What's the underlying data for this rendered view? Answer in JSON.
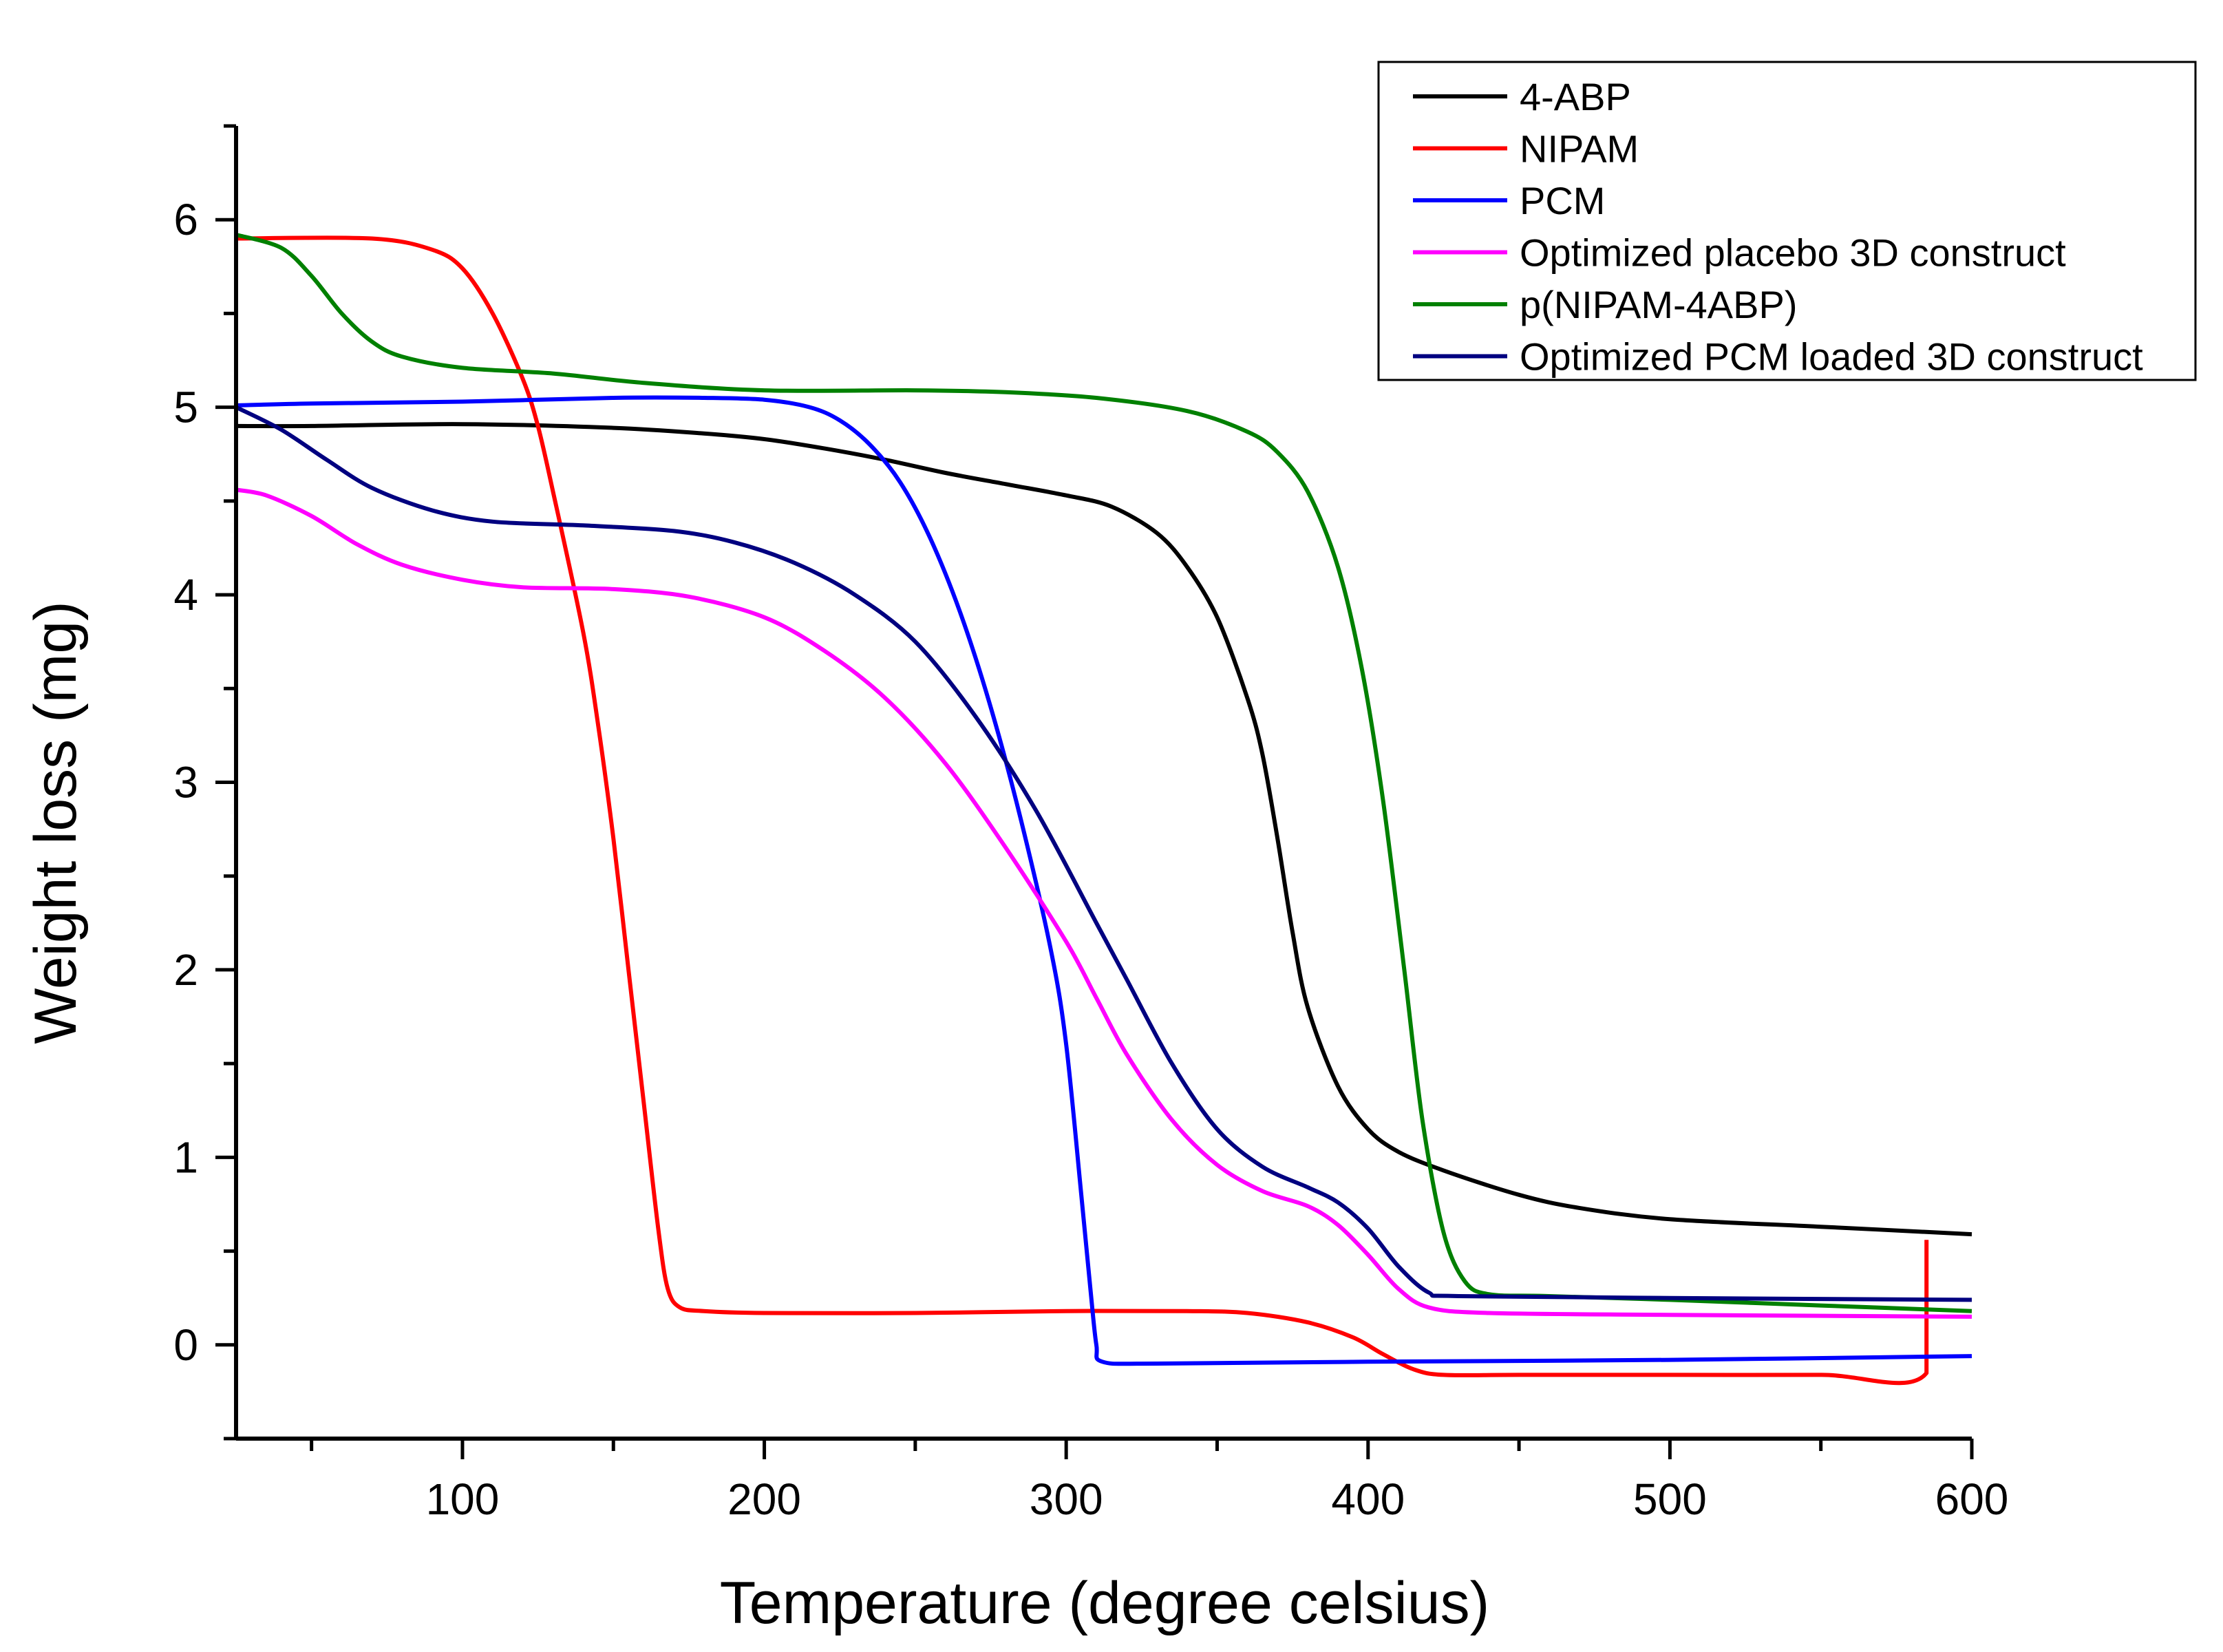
{
  "chart_data": {
    "type": "line",
    "title": "",
    "xlabel": "Temperature (degree celsius)",
    "ylabel": "Weight loss (mg)",
    "xlim": [
      25,
      600
    ],
    "ylim": [
      -0.5,
      6.5
    ],
    "xticks": [
      100,
      200,
      300,
      400,
      500,
      600
    ],
    "xtick_labels": [
      "100",
      "200",
      "300",
      "400",
      "500",
      "600"
    ],
    "yticks": [
      0,
      1,
      2,
      3,
      4,
      5,
      6
    ],
    "ytick_labels": [
      "0",
      "1",
      "2",
      "3",
      "4",
      "5",
      "6"
    ],
    "legend_position": "top-right",
    "series": [
      {
        "name": "4-ABP",
        "color": "#000000",
        "points": [
          [
            25,
            4.9
          ],
          [
            50,
            4.9
          ],
          [
            100,
            4.91
          ],
          [
            150,
            4.89
          ],
          [
            180,
            4.86
          ],
          [
            200,
            4.83
          ],
          [
            220,
            4.78
          ],
          [
            240,
            4.72
          ],
          [
            260,
            4.65
          ],
          [
            280,
            4.59
          ],
          [
            300,
            4.53
          ],
          [
            315,
            4.47
          ],
          [
            330,
            4.33
          ],
          [
            340,
            4.15
          ],
          [
            350,
            3.88
          ],
          [
            360,
            3.45
          ],
          [
            365,
            3.15
          ],
          [
            370,
            2.7
          ],
          [
            375,
            2.2
          ],
          [
            380,
            1.8
          ],
          [
            390,
            1.38
          ],
          [
            400,
            1.15
          ],
          [
            410,
            1.03
          ],
          [
            425,
            0.93
          ],
          [
            450,
            0.8
          ],
          [
            470,
            0.73
          ],
          [
            500,
            0.67
          ],
          [
            550,
            0.63
          ],
          [
            600,
            0.59
          ]
        ]
      },
      {
        "name": "NIPAM",
        "color": "#ff0000",
        "points": [
          [
            25,
            5.9
          ],
          [
            70,
            5.9
          ],
          [
            90,
            5.84
          ],
          [
            100,
            5.74
          ],
          [
            110,
            5.5
          ],
          [
            120,
            5.15
          ],
          [
            125,
            4.9
          ],
          [
            130,
            4.55
          ],
          [
            140,
            3.8
          ],
          [
            145,
            3.3
          ],
          [
            150,
            2.7
          ],
          [
            155,
            2.0
          ],
          [
            160,
            1.3
          ],
          [
            165,
            0.6
          ],
          [
            168,
            0.3
          ],
          [
            172,
            0.2
          ],
          [
            180,
            0.18
          ],
          [
            200,
            0.17
          ],
          [
            250,
            0.17
          ],
          [
            300,
            0.18
          ],
          [
            340,
            0.18
          ],
          [
            360,
            0.17
          ],
          [
            380,
            0.12
          ],
          [
            395,
            0.04
          ],
          [
            405,
            -0.05
          ],
          [
            415,
            -0.13
          ],
          [
            425,
            -0.16
          ],
          [
            450,
            -0.16
          ],
          [
            500,
            -0.16
          ],
          [
            550,
            -0.16
          ],
          [
            585,
            -0.15
          ],
          [
            585,
            0.56
          ]
        ]
      },
      {
        "name": "PCM",
        "color": "#0000ff",
        "points": [
          [
            25,
            5.01
          ],
          [
            50,
            5.02
          ],
          [
            100,
            5.03
          ],
          [
            150,
            5.05
          ],
          [
            180,
            5.05
          ],
          [
            200,
            5.04
          ],
          [
            215,
            5.0
          ],
          [
            225,
            4.93
          ],
          [
            235,
            4.8
          ],
          [
            245,
            4.6
          ],
          [
            255,
            4.3
          ],
          [
            265,
            3.9
          ],
          [
            275,
            3.4
          ],
          [
            285,
            2.8
          ],
          [
            295,
            2.1
          ],
          [
            300,
            1.6
          ],
          [
            305,
            0.8
          ],
          [
            308,
            0.3
          ],
          [
            310,
            0.0
          ],
          [
            312,
            -0.09
          ],
          [
            330,
            -0.1
          ],
          [
            400,
            -0.09
          ],
          [
            500,
            -0.08
          ],
          [
            600,
            -0.06
          ]
        ]
      },
      {
        "name": "Optimized placebo 3D construct",
        "color": "#ff00ff",
        "points": [
          [
            25,
            4.56
          ],
          [
            35,
            4.53
          ],
          [
            50,
            4.42
          ],
          [
            65,
            4.27
          ],
          [
            80,
            4.16
          ],
          [
            100,
            4.08
          ],
          [
            120,
            4.04
          ],
          [
            150,
            4.03
          ],
          [
            175,
            3.99
          ],
          [
            200,
            3.88
          ],
          [
            220,
            3.7
          ],
          [
            240,
            3.45
          ],
          [
            260,
            3.1
          ],
          [
            280,
            2.65
          ],
          [
            300,
            2.15
          ],
          [
            310,
            1.85
          ],
          [
            320,
            1.55
          ],
          [
            335,
            1.2
          ],
          [
            350,
            0.96
          ],
          [
            365,
            0.82
          ],
          [
            380,
            0.74
          ],
          [
            390,
            0.64
          ],
          [
            400,
            0.48
          ],
          [
            410,
            0.3
          ],
          [
            420,
            0.2
          ],
          [
            440,
            0.17
          ],
          [
            500,
            0.16
          ],
          [
            600,
            0.15
          ]
        ]
      },
      {
        "name": "p(NIPAM-4ABP)",
        "color": "#008000",
        "points": [
          [
            25,
            5.92
          ],
          [
            40,
            5.85
          ],
          [
            50,
            5.7
          ],
          [
            60,
            5.5
          ],
          [
            70,
            5.35
          ],
          [
            80,
            5.27
          ],
          [
            100,
            5.21
          ],
          [
            130,
            5.18
          ],
          [
            160,
            5.13
          ],
          [
            200,
            5.09
          ],
          [
            250,
            5.09
          ],
          [
            280,
            5.08
          ],
          [
            310,
            5.05
          ],
          [
            340,
            4.98
          ],
          [
            360,
            4.87
          ],
          [
            370,
            4.76
          ],
          [
            380,
            4.55
          ],
          [
            390,
            4.15
          ],
          [
            398,
            3.6
          ],
          [
            405,
            2.9
          ],
          [
            412,
            2.0
          ],
          [
            418,
            1.2
          ],
          [
            425,
            0.6
          ],
          [
            432,
            0.34
          ],
          [
            440,
            0.27
          ],
          [
            460,
            0.26
          ],
          [
            500,
            0.24
          ],
          [
            550,
            0.21
          ],
          [
            600,
            0.18
          ]
        ]
      },
      {
        "name": "Optimized PCM loaded 3D construct",
        "color": "#000080",
        "points": [
          [
            25,
            5.0
          ],
          [
            40,
            4.88
          ],
          [
            55,
            4.72
          ],
          [
            70,
            4.57
          ],
          [
            90,
            4.45
          ],
          [
            110,
            4.39
          ],
          [
            140,
            4.37
          ],
          [
            170,
            4.34
          ],
          [
            190,
            4.28
          ],
          [
            210,
            4.17
          ],
          [
            230,
            4.0
          ],
          [
            250,
            3.75
          ],
          [
            270,
            3.35
          ],
          [
            290,
            2.85
          ],
          [
            310,
            2.25
          ],
          [
            320,
            1.95
          ],
          [
            335,
            1.5
          ],
          [
            350,
            1.15
          ],
          [
            365,
            0.95
          ],
          [
            380,
            0.84
          ],
          [
            390,
            0.76
          ],
          [
            400,
            0.62
          ],
          [
            410,
            0.42
          ],
          [
            420,
            0.28
          ],
          [
            430,
            0.26
          ],
          [
            500,
            0.25
          ],
          [
            600,
            0.24
          ]
        ]
      }
    ]
  }
}
